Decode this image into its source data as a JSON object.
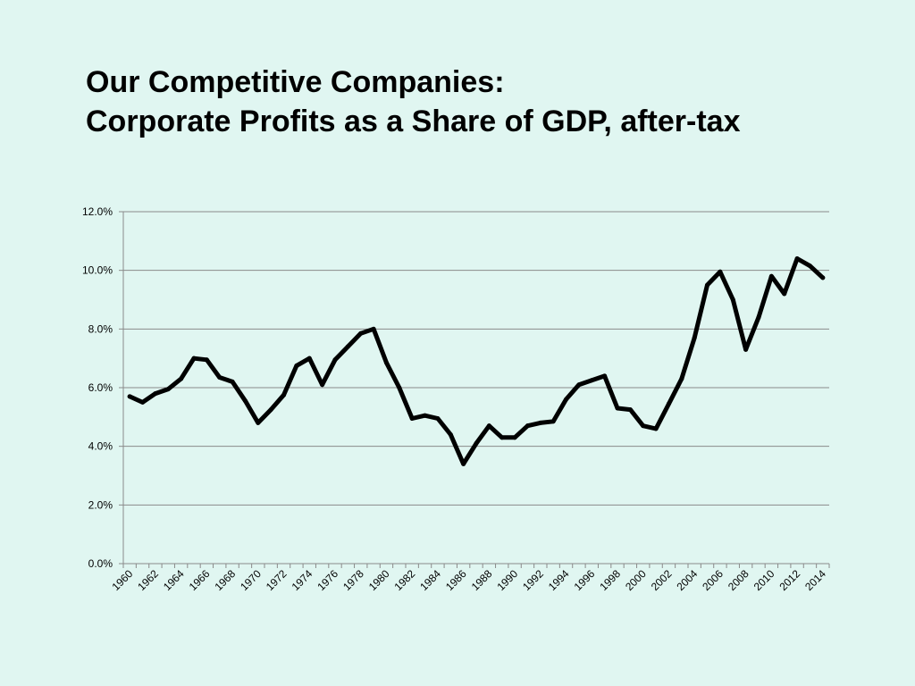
{
  "slide": {
    "title_line1": "Our Competitive Companies:",
    "title_line2": "Corporate Profits as a Share of GDP, after-tax"
  },
  "chart_data": {
    "type": "line",
    "title": "",
    "xlabel": "",
    "ylabel": "",
    "ylim": [
      0,
      12
    ],
    "y_ticks": [
      "0.0%",
      "2.0%",
      "4.0%",
      "6.0%",
      "8.0%",
      "10.0%",
      "12.0%"
    ],
    "x_ticks": [
      "1960",
      "1962",
      "1964",
      "1966",
      "1968",
      "1970",
      "1972",
      "1974",
      "1976",
      "1978",
      "1980",
      "1982",
      "1984",
      "1986",
      "1988",
      "1990",
      "1992",
      "1994",
      "1996",
      "1998",
      "2000",
      "2002",
      "2004",
      "2006",
      "2008",
      "2010",
      "2012",
      "2014"
    ],
    "grid": true,
    "legend": "none",
    "line_color": "#000000",
    "categories": [
      1960,
      1961,
      1962,
      1963,
      1964,
      1965,
      1966,
      1967,
      1968,
      1969,
      1970,
      1971,
      1972,
      1973,
      1974,
      1975,
      1976,
      1977,
      1978,
      1979,
      1980,
      1981,
      1982,
      1983,
      1984,
      1985,
      1986,
      1987,
      1988,
      1989,
      1990,
      1991,
      1992,
      1993,
      1994,
      1995,
      1996,
      1997,
      1998,
      1999,
      2000,
      2001,
      2002,
      2003,
      2004,
      2005,
      2006,
      2007,
      2008,
      2009,
      2010,
      2011,
      2012,
      2013,
      2014
    ],
    "values": [
      5.7,
      5.5,
      5.8,
      5.95,
      6.3,
      7.0,
      6.95,
      6.35,
      6.2,
      5.55,
      4.8,
      5.25,
      5.75,
      6.75,
      7.0,
      6.1,
      6.95,
      7.4,
      7.85,
      8.0,
      6.85,
      6.0,
      4.95,
      5.05,
      4.95,
      4.4,
      3.4,
      4.1,
      4.7,
      4.3,
      4.3,
      4.7,
      4.8,
      4.85,
      5.6,
      6.1,
      6.25,
      6.4,
      5.3,
      5.25,
      4.7,
      4.6,
      5.45,
      6.3,
      7.7,
      9.5,
      9.95,
      9.0,
      7.3,
      8.4,
      9.8,
      9.2,
      10.4,
      10.15,
      9.75
    ]
  }
}
